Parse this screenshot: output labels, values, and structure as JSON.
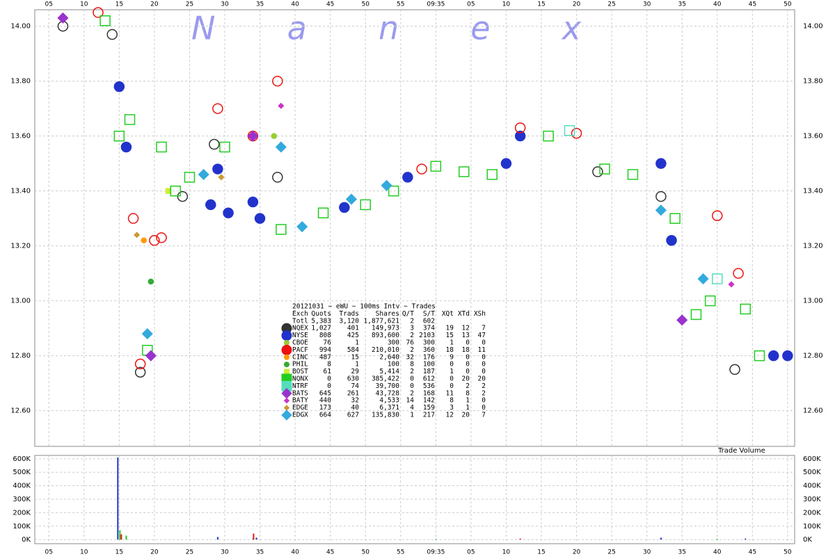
{
  "chart_data": [
    {
      "type": "scatter",
      "watermark": "N a n e x",
      "xlim": [
        3,
        111
      ],
      "xticks": [
        {
          "value": 5,
          "label": "05"
        },
        10,
        15,
        20,
        25,
        30,
        35,
        40,
        45,
        50,
        55,
        {
          "value": 60,
          "label": "09:35"
        },
        {
          "value": 65,
          "label": "05"
        },
        {
          "value": 70,
          "label": "10"
        },
        {
          "value": 75,
          "label": "15"
        },
        {
          "value": 80,
          "label": "20"
        },
        {
          "value": 85,
          "label": "25"
        },
        {
          "value": 90,
          "label": "30"
        },
        {
          "value": 95,
          "label": "35"
        },
        {
          "value": 100,
          "label": "40"
        },
        {
          "value": 105,
          "label": "45"
        },
        {
          "value": 110,
          "label": "50"
        }
      ],
      "ylim": [
        12.47,
        14.06
      ],
      "yticks": [
        {
          "value": 12.6,
          "label": "12.60"
        },
        {
          "value": 12.8,
          "label": "12.80"
        },
        {
          "value": 13,
          "label": "13.00"
        },
        {
          "value": 13.2,
          "label": "13.20"
        },
        {
          "value": 13.4,
          "label": "13.40"
        },
        {
          "value": 13.6,
          "label": "13.60"
        },
        {
          "value": 13.8,
          "label": "13.80"
        },
        {
          "value": 14,
          "label": "14.00"
        }
      ],
      "grid": true,
      "legend_title": "20121031 ~ eWU ~ 100ms Intv ~ Trades",
      "legend_columns": [
        "Exch",
        "Quots",
        "Trads",
        "Shares",
        "Q/T",
        "S/T",
        "XQt",
        "XTd",
        "XSh"
      ],
      "legend_total": [
        "Totl",
        "5,383",
        "3,120",
        "1,877,621",
        "2",
        "602"
      ],
      "series": [
        {
          "name": "NQEX",
          "color": "#333333",
          "marker": "circle",
          "stats": [
            "1,027",
            "401",
            "149,973",
            "3",
            "374",
            "19",
            "12",
            "7"
          ],
          "x": [
            7,
            14,
            18,
            24,
            28.5,
            37.5,
            83,
            92,
            102.5
          ],
          "values": [
            14.0,
            13.97,
            12.74,
            13.38,
            13.57,
            13.45,
            13.47,
            13.38,
            12.75
          ]
        },
        {
          "name": "NYSE",
          "color": "#2233cc",
          "marker": "circle",
          "stats": [
            "808",
            "425",
            "893,600",
            "2",
            "2103",
            "15",
            "13",
            "47"
          ],
          "x": [
            15,
            16,
            28,
            29,
            30.5,
            34,
            35,
            47,
            56,
            70,
            72,
            92,
            93.5,
            108,
            110
          ],
          "values": [
            13.78,
            13.56,
            13.35,
            13.48,
            13.32,
            13.36,
            13.3,
            13.34,
            13.45,
            13.5,
            13.6,
            13.5,
            13.22,
            12.8,
            12.8
          ]
        },
        {
          "name": "CBOE",
          "color": "#99cc33",
          "marker": "circle-small",
          "stats": [
            "76",
            "1",
            "300",
            "76",
            "300",
            "1",
            "0",
            "0"
          ],
          "x": [
            37
          ],
          "values": [
            13.6
          ]
        },
        {
          "name": "PACF",
          "color": "#ee1111",
          "marker": "circle",
          "stats": [
            "994",
            "584",
            "210,010",
            "2",
            "360",
            "18",
            "18",
            "11"
          ],
          "x": [
            12,
            17,
            18,
            20,
            21,
            29,
            34,
            37.5,
            58,
            72,
            80,
            100,
            103
          ],
          "values": [
            14.05,
            13.3,
            12.77,
            13.22,
            13.23,
            13.7,
            13.6,
            13.8,
            13.48,
            13.63,
            13.61,
            13.31,
            13.1
          ]
        },
        {
          "name": "CINC",
          "color": "#ff9900",
          "marker": "circle-small",
          "stats": [
            "487",
            "15",
            "2,640",
            "32",
            "176",
            "9",
            "0",
            "0"
          ],
          "x": [
            18.5
          ],
          "values": [
            13.22
          ]
        },
        {
          "name": "PHIL",
          "color": "#33aa33",
          "marker": "circle-small",
          "stats": [
            "8",
            "1",
            "100",
            "8",
            "100",
            "0",
            "0",
            "0"
          ],
          "x": [
            19.5
          ],
          "values": [
            13.07
          ]
        },
        {
          "name": "BOST",
          "color": "#ccee33",
          "marker": "square-small",
          "stats": [
            "61",
            "29",
            "5,414",
            "2",
            "187",
            "1",
            "0",
            "0"
          ],
          "x": [
            22
          ],
          "values": [
            13.4
          ]
        },
        {
          "name": "NQNX",
          "color": "#22cc22",
          "marker": "square",
          "stats": [
            "0",
            "630",
            "385,422",
            "0",
            "612",
            "0",
            "20",
            "20"
          ],
          "x": [
            13,
            15,
            16.5,
            19,
            21,
            23,
            25,
            30,
            38,
            44,
            50,
            54,
            60,
            64,
            68,
            76,
            84,
            88,
            94,
            97,
            99,
            104,
            106
          ],
          "values": [
            14.02,
            13.6,
            13.66,
            12.82,
            13.56,
            13.4,
            13.45,
            13.56,
            13.26,
            13.32,
            13.35,
            13.4,
            13.49,
            13.47,
            13.46,
            13.6,
            13.48,
            13.46,
            13.3,
            12.95,
            13.0,
            12.97,
            12.8
          ]
        },
        {
          "name": "NTRF",
          "color": "#55ddbb",
          "marker": "square",
          "stats": [
            "0",
            "74",
            "39,700",
            "0",
            "536",
            "0",
            "2",
            "2"
          ],
          "x": [
            79,
            100
          ],
          "values": [
            13.62,
            13.08
          ]
        },
        {
          "name": "BATS",
          "color": "#9933cc",
          "marker": "diamond",
          "stats": [
            "645",
            "261",
            "43,728",
            "2",
            "168",
            "11",
            "8",
            "2"
          ],
          "x": [
            7,
            19.5,
            34,
            95
          ],
          "values": [
            14.03,
            12.8,
            13.6,
            12.93
          ]
        },
        {
          "name": "BATY",
          "color": "#cc33cc",
          "marker": "diamond-small",
          "stats": [
            "440",
            "32",
            "4,533",
            "14",
            "142",
            "8",
            "1",
            "0"
          ],
          "x": [
            38,
            102
          ],
          "values": [
            13.71,
            13.06
          ]
        },
        {
          "name": "EDGE",
          "color": "#cc9933",
          "marker": "diamond-small",
          "stats": [
            "173",
            "40",
            "6,371",
            "4",
            "159",
            "3",
            "1",
            "0"
          ],
          "x": [
            17.5,
            29.5
          ],
          "values": [
            13.24,
            13.45
          ]
        },
        {
          "name": "EDGX",
          "color": "#33aadd",
          "marker": "diamond",
          "stats": [
            "664",
            "627",
            "135,830",
            "1",
            "217",
            "12",
            "20",
            "7"
          ],
          "x": [
            19,
            27,
            38,
            41,
            48,
            53,
            92,
            98
          ],
          "values": [
            12.88,
            13.46,
            13.56,
            13.27,
            13.37,
            13.42,
            13.33,
            13.08
          ]
        }
      ]
    },
    {
      "type": "bar",
      "title": "Trade Volume",
      "xlim": [
        3,
        111
      ],
      "ylim": [
        -30000,
        625000
      ],
      "yticks": [
        {
          "value": 0,
          "label": "0K"
        },
        {
          "value": 100000,
          "label": "100K"
        },
        {
          "value": 200000,
          "label": "200K"
        },
        {
          "value": 300000,
          "label": "300K"
        },
        {
          "value": 400000,
          "label": "400K"
        },
        {
          "value": 500000,
          "label": "500K"
        },
        {
          "value": 600000,
          "label": "600K"
        }
      ],
      "series": [
        {
          "color": "#2233cc",
          "x": [
            14.8,
            29,
            34.5,
            92,
            104
          ],
          "values": [
            610000,
            20000,
            15000,
            15000,
            8000
          ]
        },
        {
          "color": "#22cc22",
          "x": [
            15.1,
            16,
            34,
            60,
            100
          ],
          "values": [
            70000,
            30000,
            8000,
            5000,
            6000
          ]
        },
        {
          "color": "#ee1111",
          "x": [
            15.3,
            34.1,
            72
          ],
          "values": [
            40000,
            45000,
            8000
          ]
        }
      ]
    }
  ]
}
